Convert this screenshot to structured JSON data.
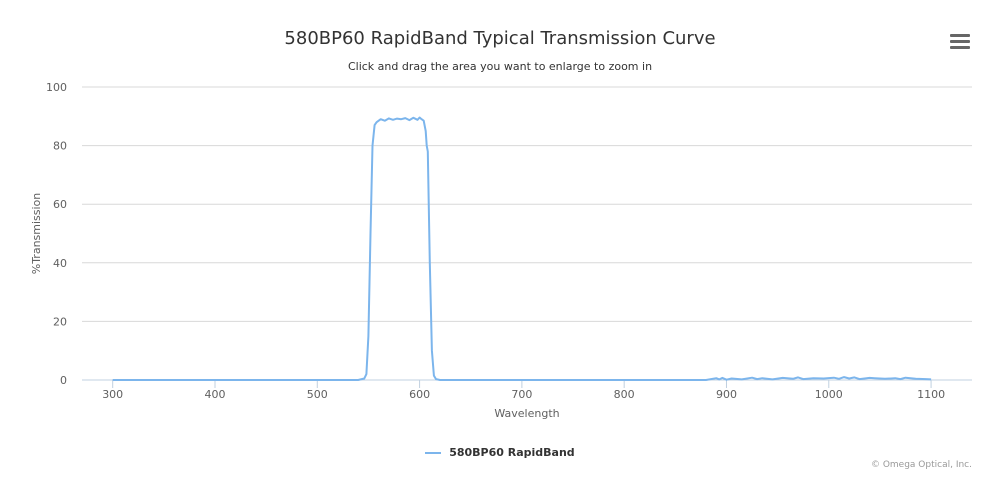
{
  "title": "580BP60 RapidBand Typical Transmission Curve",
  "subtitle": "Click and drag the area you want to enlarge to zoom in",
  "credit": "© Omega Optical, Inc.",
  "menu_icon": "hamburger-menu-icon",
  "series_color": "#7cb5ec",
  "chart_data": {
    "type": "line",
    "title": "580BP60 RapidBand Typical Transmission Curve",
    "xlabel": "Wavelength",
    "ylabel": "%Transmission",
    "xlim": [
      270,
      1140
    ],
    "ylim": [
      0,
      100
    ],
    "x_ticks": [
      300,
      400,
      500,
      600,
      700,
      800,
      900,
      1000,
      1100
    ],
    "y_ticks": [
      0,
      20,
      40,
      60,
      80,
      100
    ],
    "grid": true,
    "legend_position": "bottom-center",
    "series": [
      {
        "name": "580BP60 RapidBand",
        "color": "#7cb5ec",
        "x": [
          300,
          400,
          500,
          540,
          546,
          548,
          550,
          552,
          554,
          556,
          558,
          562,
          566,
          570,
          574,
          578,
          582,
          586,
          590,
          594,
          598,
          600,
          602,
          604,
          606,
          607,
          608,
          610,
          612,
          614,
          616,
          620,
          650,
          700,
          800,
          880,
          890,
          893,
          896,
          900,
          905,
          915,
          925,
          930,
          935,
          945,
          955,
          965,
          970,
          975,
          985,
          995,
          1005,
          1010,
          1015,
          1020,
          1025,
          1030,
          1040,
          1045,
          1055,
          1065,
          1070,
          1075,
          1085,
          1095,
          1100
        ],
        "y": [
          0,
          0,
          0,
          0,
          0.5,
          2,
          15,
          50,
          80,
          87,
          88,
          89,
          88.5,
          89.3,
          88.8,
          89.2,
          89,
          89.4,
          88.7,
          89.5,
          88.8,
          89.6,
          89,
          88.5,
          85,
          80,
          78,
          40,
          10,
          1.5,
          0.3,
          0,
          0,
          0,
          0,
          0,
          0.6,
          0.2,
          0.7,
          0.1,
          0.5,
          0.2,
          0.8,
          0.3,
          0.6,
          0.2,
          0.7,
          0.4,
          0.9,
          0.3,
          0.6,
          0.5,
          0.8,
          0.4,
          1.0,
          0.5,
          0.9,
          0.3,
          0.7,
          0.6,
          0.4,
          0.6,
          0.3,
          0.8,
          0.4,
          0.3,
          0.2
        ]
      }
    ]
  }
}
